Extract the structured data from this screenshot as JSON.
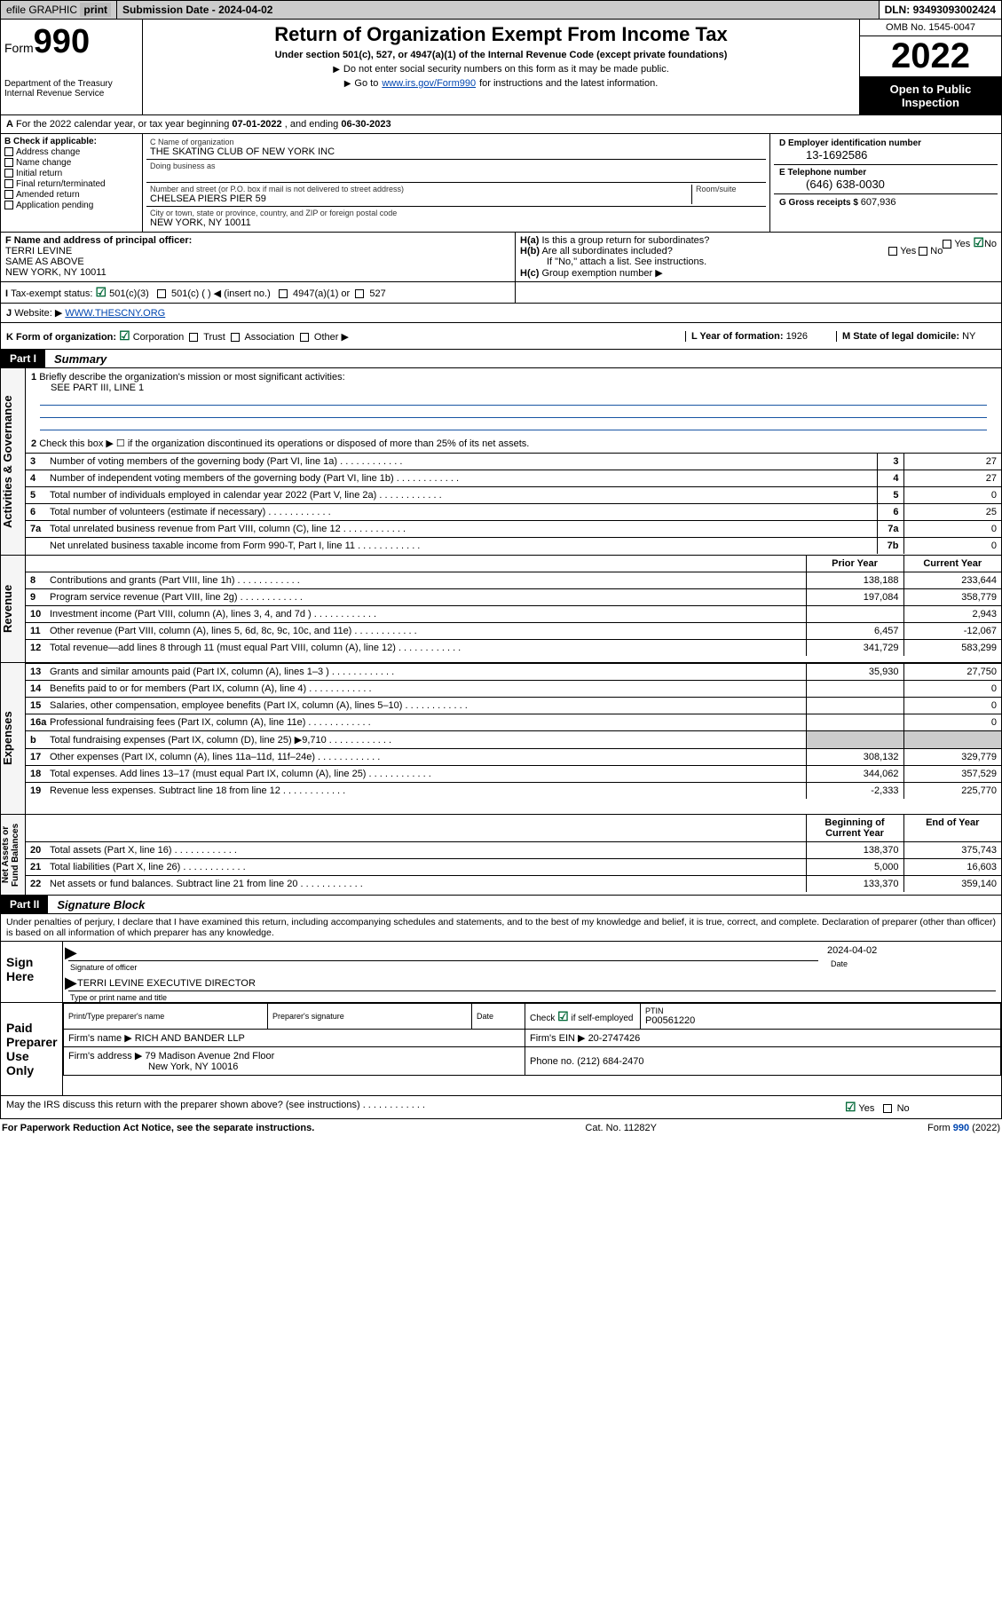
{
  "top": {
    "efile": "efile GRAPHIC",
    "print": "print",
    "subdate_label": "Submission Date - ",
    "subdate": "2024-04-02",
    "dln_label": "DLN: ",
    "dln": "93493093002424"
  },
  "header": {
    "form_prefix": "Form",
    "form_no": "990",
    "dept": "Department of the Treasury Internal Revenue Service",
    "title": "Return of Organization Exempt From Income Tax",
    "sub": "Under section 501(c), 527, or 4947(a)(1) of the Internal Revenue Code (except private foundations)",
    "note1": "Do not enter social security numbers on this form as it may be made public.",
    "note2_pre": "Go to ",
    "note2_link": "www.irs.gov/Form990",
    "note2_post": " for instructions and the latest information.",
    "omb": "OMB No. 1545-0047",
    "year": "2022",
    "open": "Open to Public Inspection"
  },
  "a": {
    "text_pre": "For the 2022 calendar year, or tax year beginning ",
    "begin": "07-01-2022",
    "mid": " , and ending ",
    "end": "06-30-2023"
  },
  "b": {
    "hdr": "B Check if applicable:",
    "opts": [
      "Address change",
      "Name change",
      "Initial return",
      "Final return/terminated",
      "Amended return",
      "Application pending"
    ]
  },
  "c": {
    "hdr": "C Name of organization",
    "org": "THE SKATING CLUB OF NEW YORK INC",
    "dba_label": "Doing business as",
    "street_label": "Number and street (or P.O. box if mail is not delivered to street address)",
    "room": "Room/suite",
    "street": "CHELSEA PIERS PIER 59",
    "city_label": "City or town, state or province, country, and ZIP or foreign postal code",
    "city": "NEW YORK, NY  10011"
  },
  "d": {
    "lbl": "D Employer identification number",
    "val": "13-1692586"
  },
  "e": {
    "lbl": "E Telephone number",
    "val": "(646) 638-0030"
  },
  "g": {
    "lbl": "G Gross receipts $ ",
    "val": "607,936"
  },
  "f": {
    "lbl": "F Name and address of principal officer:",
    "name": "TERRI LEVINE",
    "addr1": "SAME AS ABOVE",
    "addr2": "NEW YORK, NY  10011"
  },
  "h": {
    "a": "Is this a group return for subordinates?",
    "b": "Are all subordinates included?",
    "b_note": "If \"No,\" attach a list. See instructions.",
    "c": "Group exemption number ▶",
    "yes": "Yes",
    "no": "No"
  },
  "i": {
    "lbl": "Tax-exempt status:",
    "c3": "501(c)(3)",
    "c": "501(c) (    ) ◀ (insert no.)",
    "a1": "4947(a)(1) or",
    "s527": "527"
  },
  "j": {
    "lbl": "Website: ▶ ",
    "val": "WWW.THESCNY.ORG"
  },
  "k": {
    "lbl": "K Form of organization:",
    "opts": [
      "Corporation",
      "Trust",
      "Association",
      "Other ▶"
    ]
  },
  "l": {
    "lbl": "L Year of formation: ",
    "val": "1926"
  },
  "m": {
    "lbl": "M State of legal domicile: ",
    "val": "NY"
  },
  "part1": {
    "tag": "Part I",
    "title": "Summary",
    "q1": "Briefly describe the organization's mission or most significant activities:",
    "q1_ans": "SEE PART III, LINE 1",
    "q2": "Check this box ▶ ☐ if the organization discontinued its operations or disposed of more than 25% of its net assets.",
    "prior": "Prior Year",
    "curr": "Current Year",
    "begin": "Beginning of Current Year",
    "eoy": "End of Year",
    "lines": {
      "3": {
        "t": "Number of voting members of the governing body (Part VI, line 1a)",
        "n": "3",
        "v": "27"
      },
      "4": {
        "t": "Number of independent voting members of the governing body (Part VI, line 1b)",
        "n": "4",
        "v": "27"
      },
      "5": {
        "t": "Total number of individuals employed in calendar year 2022 (Part V, line 2a)",
        "n": "5",
        "v": "0"
      },
      "6": {
        "t": "Total number of volunteers (estimate if necessary)",
        "n": "6",
        "v": "25"
      },
      "7a": {
        "t": "Total unrelated business revenue from Part VIII, column (C), line 12",
        "n": "7a",
        "v": "0"
      },
      "7b": {
        "t": "Net unrelated business taxable income from Form 990-T, Part I, line 11",
        "n": "7b",
        "v": "0"
      }
    },
    "revenue": [
      {
        "n": "8",
        "t": "Contributions and grants (Part VIII, line 1h)",
        "p": "138,188",
        "c": "233,644"
      },
      {
        "n": "9",
        "t": "Program service revenue (Part VIII, line 2g)",
        "p": "197,084",
        "c": "358,779"
      },
      {
        "n": "10",
        "t": "Investment income (Part VIII, column (A), lines 3, 4, and 7d )",
        "p": "",
        "c": "2,943"
      },
      {
        "n": "11",
        "t": "Other revenue (Part VIII, column (A), lines 5, 6d, 8c, 9c, 10c, and 11e)",
        "p": "6,457",
        "c": "-12,067"
      },
      {
        "n": "12",
        "t": "Total revenue—add lines 8 through 11 (must equal Part VIII, column (A), line 12)",
        "p": "341,729",
        "c": "583,299"
      }
    ],
    "expenses": [
      {
        "n": "13",
        "t": "Grants and similar amounts paid (Part IX, column (A), lines 1–3 )",
        "p": "35,930",
        "c": "27,750"
      },
      {
        "n": "14",
        "t": "Benefits paid to or for members (Part IX, column (A), line 4)",
        "p": "",
        "c": "0"
      },
      {
        "n": "15",
        "t": "Salaries, other compensation, employee benefits (Part IX, column (A), lines 5–10)",
        "p": "",
        "c": "0"
      },
      {
        "n": "16a",
        "t": "Professional fundraising fees (Part IX, column (A), line 11e)",
        "p": "",
        "c": "0"
      },
      {
        "n": "b",
        "t": "Total fundraising expenses (Part IX, column (D), line 25) ▶9,710",
        "p": "SHADE",
        "c": "SHADE"
      },
      {
        "n": "17",
        "t": "Other expenses (Part IX, column (A), lines 11a–11d, 11f–24e)",
        "p": "308,132",
        "c": "329,779"
      },
      {
        "n": "18",
        "t": "Total expenses. Add lines 13–17 (must equal Part IX, column (A), line 25)",
        "p": "344,062",
        "c": "357,529"
      },
      {
        "n": "19",
        "t": "Revenue less expenses. Subtract line 18 from line 12",
        "p": "-2,333",
        "c": "225,770"
      }
    ],
    "netassets": [
      {
        "n": "20",
        "t": "Total assets (Part X, line 16)",
        "p": "138,370",
        "c": "375,743"
      },
      {
        "n": "21",
        "t": "Total liabilities (Part X, line 26)",
        "p": "5,000",
        "c": "16,603"
      },
      {
        "n": "22",
        "t": "Net assets or fund balances. Subtract line 21 from line 20",
        "p": "133,370",
        "c": "359,140"
      }
    ]
  },
  "sidebars": {
    "ag": "Activities & Governance",
    "rev": "Revenue",
    "exp": "Expenses",
    "net": "Net Assets or Fund Balances"
  },
  "part2": {
    "tag": "Part II",
    "title": "Signature Block",
    "decl": "Under penalties of perjury, I declare that I have examined this return, including accompanying schedules and statements, and to the best of my knowledge and belief, it is true, correct, and complete. Declaration of preparer (other than officer) is based on all information of which preparer has any knowledge.",
    "sign_here": "Sign Here",
    "sig_officer": "Signature of officer",
    "date": "Date",
    "sig_date": "2024-04-02",
    "name_title": "TERRI LEVINE  EXECUTIVE DIRECTOR",
    "name_title_lbl": "Type or print name and title",
    "paid": "Paid Preparer Use Only",
    "prep_name_lbl": "Print/Type preparer's name",
    "prep_sig_lbl": "Preparer's signature",
    "date_lbl": "Date",
    "check_self": "Check ☑ if self-employed",
    "ptin_lbl": "PTIN",
    "ptin": "P00561220",
    "firm_name_lbl": "Firm's name    ▶ ",
    "firm_name": "RICH AND BANDER LLP",
    "firm_ein_lbl": "Firm's EIN ▶ ",
    "firm_ein": "20-2747426",
    "firm_addr_lbl": "Firm's address ▶ ",
    "firm_addr1": "79 Madison Avenue 2nd Floor",
    "firm_addr2": "New York, NY  10016",
    "phone_lbl": "Phone no. ",
    "phone": "(212) 684-2470",
    "discuss": "May the IRS discuss this return with the preparer shown above? (see instructions)"
  },
  "footer": {
    "pra": "For Paperwork Reduction Act Notice, see the separate instructions.",
    "cat": "Cat. No. 11282Y",
    "form": "Form 990 (2022)"
  },
  "colors": {
    "accent": "#006837",
    "link": "#0046b0",
    "blueline": "#1855a3"
  }
}
